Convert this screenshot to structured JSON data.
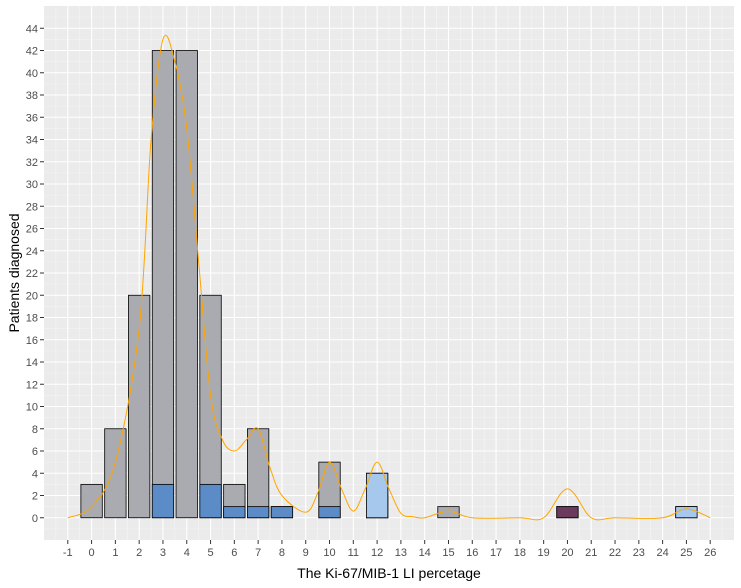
{
  "chart_data": {
    "type": "bar",
    "title": "",
    "xlabel": "The Ki-67/MIB-1 LI percetage",
    "ylabel": "Patients diagnosed",
    "xlim": [
      -2,
      27
    ],
    "ylim": [
      -2,
      46
    ],
    "x_ticks": [
      -1,
      0,
      1,
      2,
      3,
      4,
      5,
      6,
      7,
      8,
      9,
      10,
      11,
      12,
      13,
      14,
      15,
      16,
      17,
      18,
      19,
      20,
      21,
      22,
      23,
      24,
      25,
      26
    ],
    "y_ticks": [
      0,
      2,
      4,
      6,
      8,
      10,
      12,
      14,
      16,
      18,
      20,
      22,
      24,
      26,
      28,
      30,
      32,
      34,
      36,
      38,
      40,
      42,
      44
    ],
    "grid": true,
    "legend": "none",
    "series": [
      {
        "type": "bar",
        "color": "#a9abb0",
        "x": [
          0,
          1,
          2,
          3,
          4,
          5,
          6,
          7,
          8,
          10,
          12,
          15,
          20,
          25
        ],
        "values": [
          3,
          8,
          20,
          42,
          42,
          20,
          3,
          8,
          1,
          5,
          4,
          1,
          1,
          1
        ]
      },
      {
        "type": "bar",
        "color": "#5b8cc8",
        "x": [
          3,
          5,
          6,
          7,
          8,
          10,
          12
        ],
        "values": [
          3,
          3,
          1,
          1,
          1,
          1,
          2
        ]
      },
      {
        "type": "bar",
        "color": "#a5c8ec",
        "x": [
          12,
          25
        ],
        "values": [
          4,
          1
        ]
      },
      {
        "type": "bar",
        "color": "#6b3a5c",
        "x": [
          20
        ],
        "values": [
          1
        ]
      },
      {
        "type": "line",
        "color": "#ffa500",
        "x": [
          -1,
          0,
          1,
          2,
          2.5,
          3,
          3.5,
          4,
          4.5,
          5,
          5.5,
          6,
          6.5,
          7,
          7.5,
          8,
          9,
          9.5,
          10,
          10.5,
          11,
          11.5,
          12,
          12.5,
          13,
          13.5,
          14,
          15,
          16,
          18,
          19,
          20,
          21,
          22,
          24,
          25,
          26
        ],
        "values": [
          0,
          1,
          5,
          17,
          34,
          43,
          41,
          35,
          23,
          11,
          7,
          6,
          7,
          8,
          4.5,
          2,
          0.5,
          2.2,
          5,
          2.6,
          0.6,
          2.6,
          5,
          2.6,
          0.4,
          0.1,
          0,
          0.6,
          0,
          0,
          0,
          2.6,
          0,
          0,
          0,
          0.8,
          0
        ]
      }
    ]
  }
}
